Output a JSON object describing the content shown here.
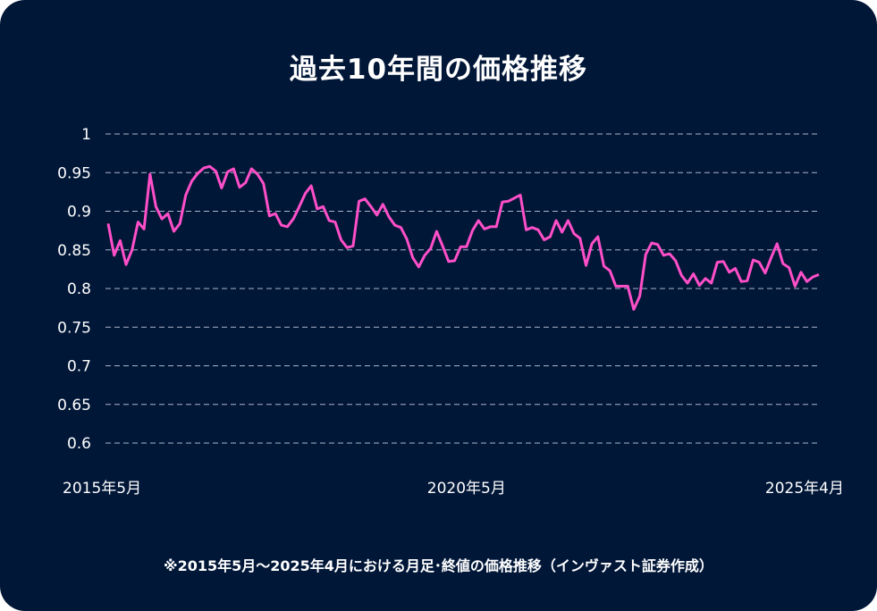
{
  "chart_data": {
    "type": "line",
    "title": "過去10年間の価格推移",
    "xlabel": "",
    "ylabel": "",
    "ylim": [
      0.6,
      1.0
    ],
    "yticks": [
      "1",
      "0.95",
      "0.9",
      "0.85",
      "0.8",
      "0.75",
      "0.7",
      "0.65",
      "0.6"
    ],
    "ytick_values": [
      1,
      0.95,
      0.9,
      0.85,
      0.8,
      0.75,
      0.7,
      0.65,
      0.6
    ],
    "xtick_labels": [
      "2015年5月",
      "2020年5月",
      "2025年4月"
    ],
    "xtick_months": [
      0,
      60,
      119
    ],
    "x_start": "2015-05",
    "x_end": "2025-04",
    "grid": true,
    "line_color": "#ff4fc8",
    "series": [
      {
        "values": [
          0.884,
          0.843,
          0.862,
          0.831,
          0.85,
          0.886,
          0.877,
          0.948,
          0.906,
          0.89,
          0.897,
          0.874,
          0.884,
          0.921,
          0.939,
          0.949,
          0.956,
          0.958,
          0.952,
          0.93,
          0.951,
          0.955,
          0.931,
          0.937,
          0.955,
          0.948,
          0.936,
          0.894,
          0.897,
          0.882,
          0.88,
          0.89,
          0.906,
          0.923,
          0.933,
          0.903,
          0.906,
          0.888,
          0.886,
          0.863,
          0.853,
          0.855,
          0.913,
          0.916,
          0.906,
          0.895,
          0.909,
          0.893,
          0.882,
          0.879,
          0.864,
          0.84,
          0.828,
          0.843,
          0.852,
          0.874,
          0.855,
          0.835,
          0.836,
          0.854,
          0.854,
          0.875,
          0.888,
          0.877,
          0.88,
          0.88,
          0.912,
          0.913,
          0.917,
          0.921,
          0.876,
          0.879,
          0.876,
          0.863,
          0.867,
          0.888,
          0.873,
          0.888,
          0.871,
          0.865,
          0.83,
          0.858,
          0.867,
          0.829,
          0.823,
          0.803,
          0.803,
          0.803,
          0.773,
          0.79,
          0.844,
          0.859,
          0.857,
          0.843,
          0.845,
          0.836,
          0.817,
          0.807,
          0.819,
          0.804,
          0.813,
          0.807,
          0.834,
          0.835,
          0.821,
          0.826,
          0.809,
          0.81,
          0.837,
          0.834,
          0.82,
          0.84,
          0.858,
          0.832,
          0.827,
          0.803,
          0.821,
          0.809,
          0.815,
          0.818
        ]
      }
    ]
  },
  "footnote": "※2015年5月～2025年4月における月足･終値の価格推移（インヴァスト証券作成）",
  "colors": {
    "background": "#011738",
    "line": "#ff4fc8",
    "grid": "#aab4c8",
    "text": "#ffffff"
  }
}
